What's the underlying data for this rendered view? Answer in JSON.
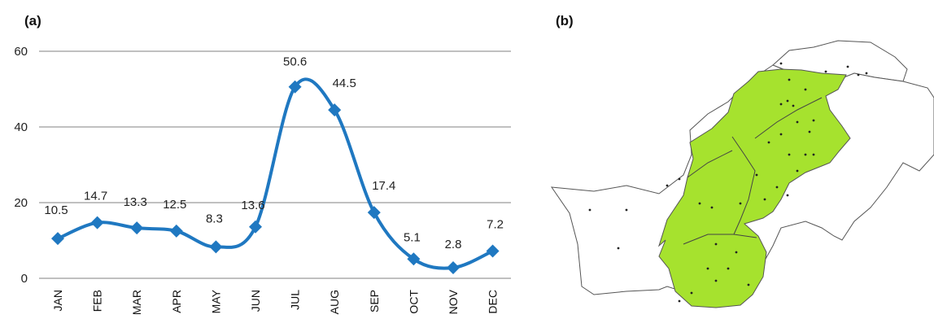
{
  "panels": {
    "a": "(a)",
    "b": "(b)"
  },
  "chart_data": {
    "type": "line",
    "categories": [
      "JAN",
      "FEB",
      "MAR",
      "APR",
      "MAY",
      "JUN",
      "JUL",
      "AUG",
      "SEP",
      "OCT",
      "NOV",
      "DEC"
    ],
    "series": [
      {
        "values": [
          10.5,
          14.7,
          13.3,
          12.5,
          8.3,
          13.6,
          50.6,
          44.5,
          17.4,
          5.1,
          2.8,
          7.2
        ]
      }
    ],
    "data_labels": [
      "10.5",
      "14.7",
      "13.3",
      "12.5",
      "8.3",
      "13.6",
      "50.6",
      "44.5",
      "17.4",
      "5.1",
      "2.8",
      "7.2"
    ],
    "yticks": [
      0,
      20,
      40,
      60
    ],
    "ylim": [
      0,
      60
    ],
    "grid": true,
    "line_color": "#1f78c1",
    "marker": "diamond"
  },
  "map": {
    "highlight_color": "#a6e22e",
    "border_color": "#555555"
  }
}
